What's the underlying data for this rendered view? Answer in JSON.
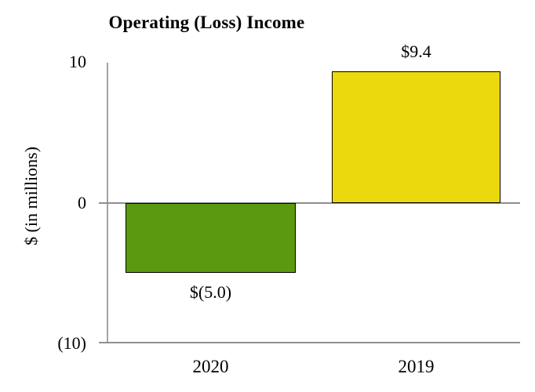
{
  "page": {
    "background": "#ffffff"
  },
  "chart_data": {
    "type": "bar",
    "title": "Operating (Loss) Income",
    "ylabel": "$ (in millions)",
    "xlabel": "",
    "categories": [
      "2020",
      "2019"
    ],
    "values": [
      -5.0,
      9.4
    ],
    "bar_labels": [
      "$(5.0)",
      "$9.4"
    ],
    "bar_colors": [
      "#5b9a0f",
      "#ebd90e"
    ],
    "bar_border_color": "#000000",
    "ylim": [
      -10,
      10
    ],
    "yticks": [
      {
        "value": 10,
        "label": "10"
      },
      {
        "value": 0,
        "label": "0"
      },
      {
        "value": -10,
        "label": "(10)"
      }
    ],
    "grid": false,
    "legend": "none",
    "axis_color": "#8f8f8f"
  }
}
